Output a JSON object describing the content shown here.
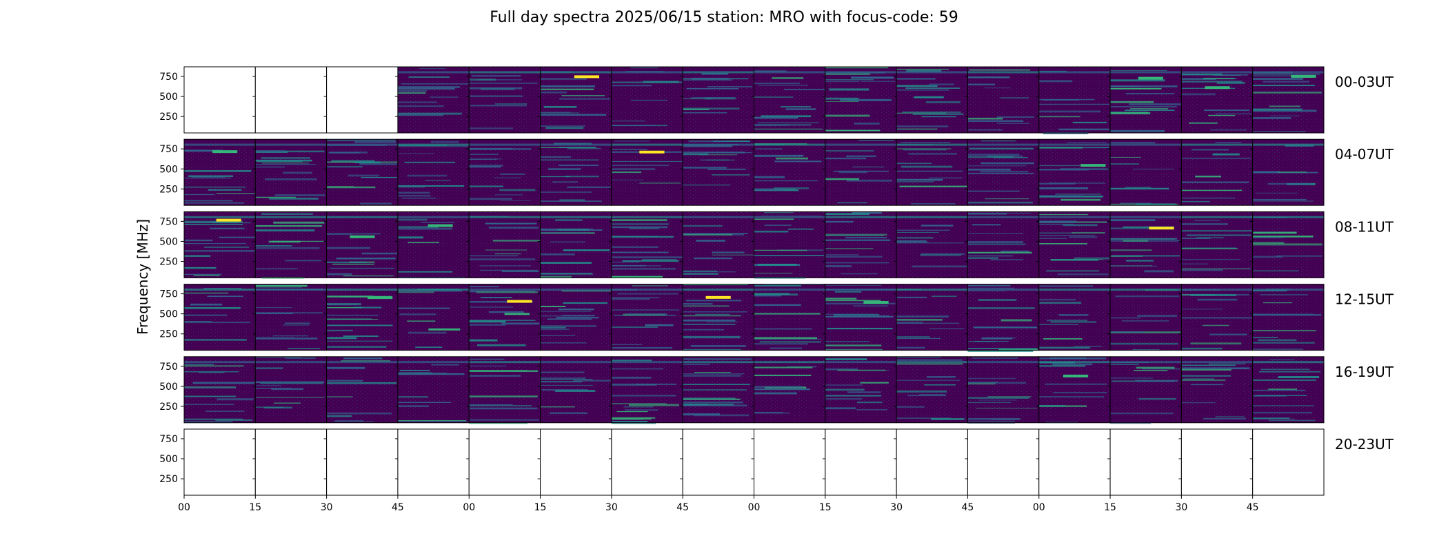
{
  "chart_data": {
    "type": "heatmap",
    "title": "Full day spectra 2025/06/15 station: MRO with focus-code: 59",
    "ylabel": "Frequency [MHz]",
    "xlabel": "",
    "ylim": [
      45,
      870
    ],
    "yticks": [
      250,
      500,
      750
    ],
    "xtick_labels": [
      "00",
      "15",
      "30",
      "45",
      "00",
      "15",
      "30",
      "45",
      "00",
      "15",
      "30",
      "45",
      "00",
      "15",
      "30",
      "45"
    ],
    "colormap": "viridis",
    "rows": [
      {
        "label": "00-03UT",
        "filled": [
          false,
          false,
          false,
          true,
          true,
          true,
          true,
          true,
          true,
          true,
          true,
          true,
          true,
          true,
          true,
          true
        ]
      },
      {
        "label": "04-07UT",
        "filled": [
          true,
          true,
          true,
          true,
          true,
          true,
          true,
          true,
          true,
          true,
          true,
          true,
          true,
          true,
          true,
          true
        ]
      },
      {
        "label": "08-11UT",
        "filled": [
          true,
          true,
          true,
          true,
          true,
          true,
          true,
          true,
          true,
          true,
          true,
          true,
          true,
          true,
          true,
          true
        ]
      },
      {
        "label": "12-15UT",
        "filled": [
          true,
          true,
          true,
          true,
          true,
          true,
          true,
          true,
          true,
          true,
          true,
          true,
          true,
          true,
          true,
          true
        ]
      },
      {
        "label": "16-19UT",
        "filled": [
          true,
          true,
          true,
          true,
          true,
          true,
          true,
          true,
          true,
          true,
          true,
          true,
          true,
          true,
          true,
          true
        ]
      },
      {
        "label": "20-23UT",
        "filled": [
          false,
          false,
          false,
          false,
          false,
          false,
          false,
          false,
          false,
          false,
          false,
          false,
          false,
          false,
          false,
          false
        ]
      }
    ],
    "colors": {
      "background": "#440154",
      "band_blue": "#31688e",
      "band_teal": "#21918c",
      "band_green": "#35b779",
      "band_yellow": "#fde725",
      "border": "#000000"
    }
  }
}
